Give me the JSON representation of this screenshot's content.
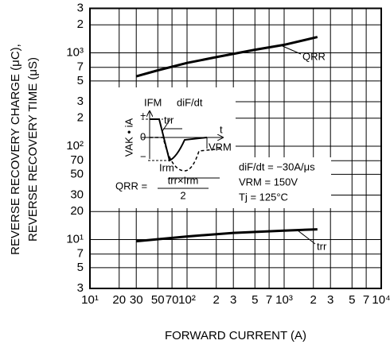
{
  "chart_data": {
    "type": "line",
    "xlabel": "FORWARD CURRENT  (A)",
    "ylabel": [
      "REVERSE RECOVERY CHARGE  (μC),",
      "REVERSE RECOVERY TIME  (μS)"
    ],
    "log_x": true,
    "log_y": true,
    "grid": true,
    "xlim": [
      10,
      10000
    ],
    "ylim": [
      3,
      3000
    ],
    "xticks": [
      {
        "value": 10,
        "label": "10¹"
      },
      20,
      30,
      50,
      70,
      {
        "value": 100,
        "label": "10²"
      },
      {
        "value": 200,
        "label": "2"
      },
      {
        "value": 300,
        "label": "3"
      },
      {
        "value": 500,
        "label": "5"
      },
      {
        "value": 700,
        "label": "7"
      },
      {
        "value": 1000,
        "label": "10³"
      },
      {
        "value": 2000,
        "label": "2"
      },
      {
        "value": 3000,
        "label": "3"
      },
      {
        "value": 5000,
        "label": "5"
      },
      {
        "value": 7000,
        "label": "7"
      },
      {
        "value": 10000,
        "label": "10⁴"
      }
    ],
    "yticks": [
      3,
      5,
      7,
      {
        "value": 10,
        "label": "10¹"
      },
      20,
      30,
      50,
      70,
      {
        "value": 100,
        "label": "10²"
      },
      {
        "value": 200,
        "label": "2"
      },
      {
        "value": 300,
        "label": "3"
      },
      {
        "value": 500,
        "label": "5"
      },
      {
        "value": 700,
        "label": "7"
      },
      {
        "value": 1000,
        "label": "10³"
      },
      {
        "value": 2000,
        "label": "2"
      },
      {
        "value": 3000,
        "label": "3"
      }
    ],
    "series": [
      {
        "name": "QRR",
        "color": "#000000",
        "x": [
          30,
          50,
          100,
          200,
          500,
          1000,
          2200
        ],
        "values": [
          560,
          650,
          780,
          900,
          1080,
          1220,
          1480
        ]
      },
      {
        "name": "trr",
        "color": "#000000",
        "x": [
          30,
          100,
          300,
          1000,
          2200
        ],
        "values": [
          9.6,
          10.8,
          11.8,
          12.5,
          12.9
        ]
      }
    ],
    "inset": {
      "ifm": "IFM",
      "didt": "diF/dt",
      "trr": "trr",
      "t": "t",
      "vrm": "VRM",
      "vak": "VAK • iA",
      "plus": "+",
      "zero": "0",
      "minus": "−",
      "irm": "Irm",
      "formula_left": "QRR =",
      "formula_num": "trr×Irm",
      "formula_den": "2"
    },
    "conditions": [
      "diF/dt = −30A/μs",
      "VRM = 150V",
      "Tj = 125°C"
    ]
  }
}
